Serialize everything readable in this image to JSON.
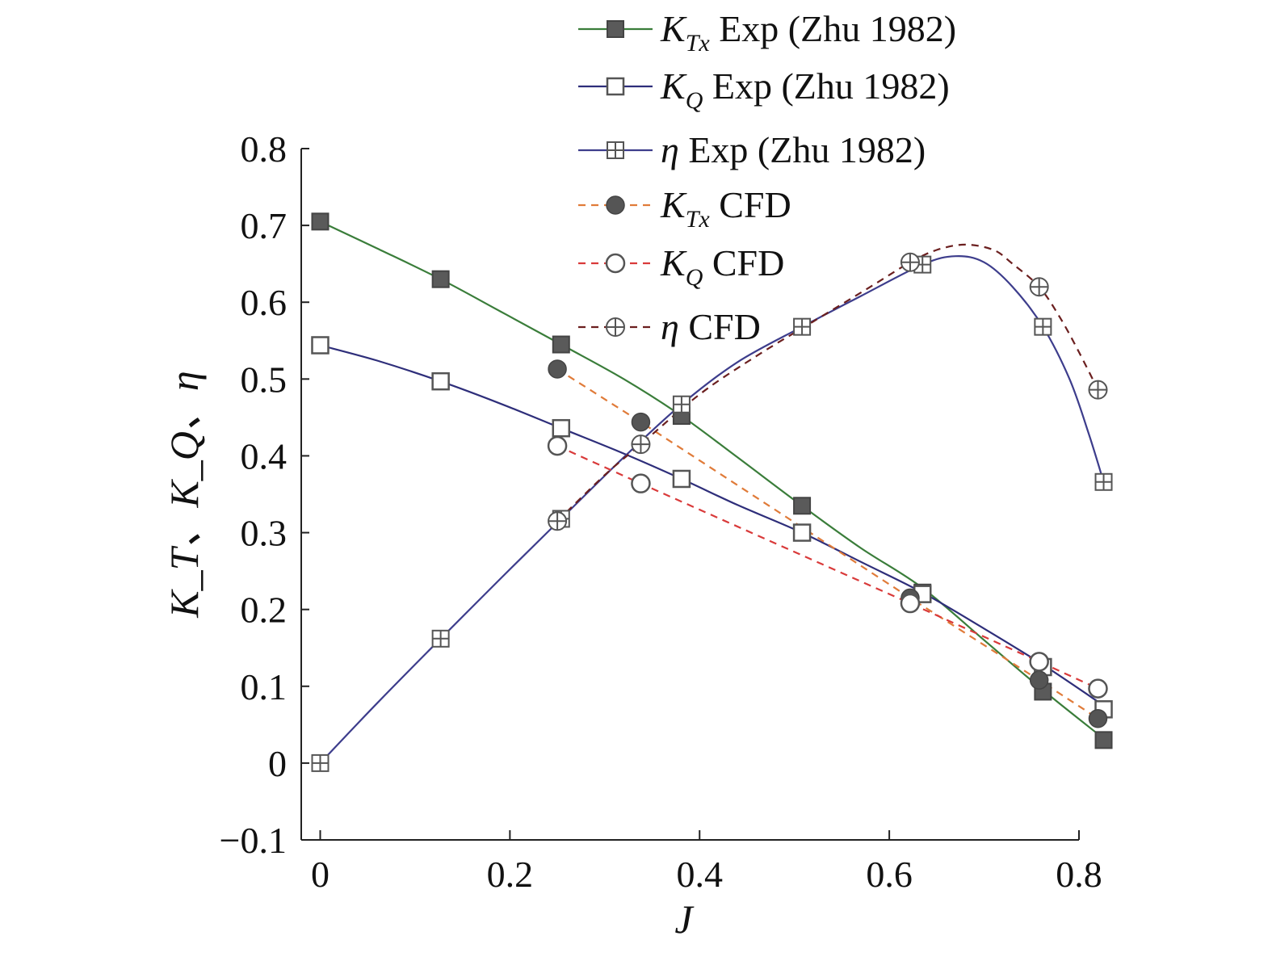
{
  "chart_data": {
    "type": "line",
    "title": "",
    "xlabel": "J",
    "ylabel": "K_T、K_Q、η",
    "xlim": [
      -0.02,
      0.8
    ],
    "ylim": [
      -0.1,
      0.8
    ],
    "xticks": [
      0,
      0.2,
      0.4,
      0.6,
      0.8
    ],
    "xtick_labels": [
      "0",
      "0.2",
      "0.4",
      "0.6",
      "0.8"
    ],
    "yticks": [
      -0.1,
      0,
      0.1,
      0.2,
      0.3,
      0.4,
      0.5,
      0.6,
      0.7,
      0.8
    ],
    "ytick_labels": [
      "−0.1",
      "0",
      "0.1",
      "0.2",
      "0.3",
      "0.4",
      "0.5",
      "0.6",
      "0.7",
      "0.8"
    ],
    "legend_position": "top-right",
    "series": [
      {
        "name": "KTx Exp (Zhu 1982)",
        "symbol": "K",
        "sub": "Tx",
        "suffix": " Exp (Zhu 1982)",
        "marker": "square-filled",
        "line": "solid",
        "color": "#3a7d3a",
        "x": [
          0,
          0.127,
          0.254,
          0.381,
          0.508,
          0.635,
          0.762,
          0.826
        ],
        "y": [
          0.705,
          0.63,
          0.545,
          0.452,
          0.335,
          0.222,
          0.093,
          0.03
        ],
        "curve": {
          "x": [
            0,
            0.06,
            0.127,
            0.19,
            0.254,
            0.32,
            0.381,
            0.44,
            0.508,
            0.57,
            0.635,
            0.7,
            0.762,
            0.826
          ],
          "y": [
            0.705,
            0.67,
            0.63,
            0.588,
            0.545,
            0.5,
            0.452,
            0.398,
            0.335,
            0.28,
            0.228,
            0.16,
            0.095,
            0.032
          ]
        }
      },
      {
        "name": "KQ Exp (Zhu 1982)",
        "symbol": "K",
        "sub": "Q",
        "suffix": " Exp (Zhu 1982)",
        "marker": "square-open",
        "line": "solid",
        "color": "#2e2e7a",
        "x": [
          0,
          0.127,
          0.254,
          0.381,
          0.508,
          0.635,
          0.762,
          0.826
        ],
        "y": [
          0.544,
          0.497,
          0.436,
          0.37,
          0.3,
          0.22,
          0.125,
          0.07
        ],
        "curve": {
          "x": [
            0,
            0.06,
            0.127,
            0.19,
            0.254,
            0.32,
            0.381,
            0.44,
            0.508,
            0.57,
            0.635,
            0.7,
            0.762,
            0.826
          ],
          "y": [
            0.544,
            0.524,
            0.497,
            0.468,
            0.436,
            0.403,
            0.37,
            0.336,
            0.3,
            0.262,
            0.222,
            0.175,
            0.128,
            0.075
          ]
        }
      },
      {
        "name": "η Exp (Zhu 1982)",
        "symbol": "η",
        "sub": "",
        "suffix": " Exp (Zhu 1982)",
        "marker": "square-plus",
        "line": "solid",
        "color": "#3d3d8c",
        "x": [
          0,
          0.127,
          0.254,
          0.381,
          0.508,
          0.635,
          0.762,
          0.826
        ],
        "y": [
          0,
          0.162,
          0.318,
          0.467,
          0.568,
          0.649,
          0.568,
          0.366
        ],
        "curve": {
          "x": [
            0,
            0.06,
            0.127,
            0.19,
            0.254,
            0.32,
            0.381,
            0.44,
            0.508,
            0.57,
            0.635,
            0.67,
            0.7,
            0.73,
            0.762,
            0.79,
            0.81,
            0.826
          ],
          "y": [
            0,
            0.078,
            0.162,
            0.24,
            0.318,
            0.398,
            0.467,
            0.522,
            0.568,
            0.608,
            0.649,
            0.66,
            0.652,
            0.62,
            0.568,
            0.5,
            0.43,
            0.366
          ]
        }
      },
      {
        "name": "KTx CFD",
        "symbol": "K",
        "sub": "Tx",
        "suffix": " CFD",
        "marker": "circle-filled",
        "line": "dashed",
        "color": "#e07b39",
        "x": [
          0.25,
          0.338,
          0.622,
          0.758,
          0.82
        ],
        "y": [
          0.513,
          0.444,
          0.215,
          0.108,
          0.058
        ]
      },
      {
        "name": "KQ CFD",
        "symbol": "K",
        "sub": "Q",
        "suffix": " CFD",
        "marker": "circle-open",
        "line": "dashed",
        "color": "#d93a3a",
        "x": [
          0.25,
          0.338,
          0.622,
          0.758,
          0.82
        ],
        "y": [
          0.413,
          0.364,
          0.208,
          0.132,
          0.097
        ]
      },
      {
        "name": "η CFD",
        "symbol": "η",
        "sub": "",
        "suffix": " CFD",
        "marker": "circle-plus",
        "line": "dashed",
        "color": "#6b1f1f",
        "x": [
          0.25,
          0.338,
          0.622,
          0.758,
          0.82
        ],
        "y": [
          0.315,
          0.415,
          0.652,
          0.62,
          0.486
        ],
        "curve": {
          "x": [
            0.25,
            0.3,
            0.338,
            0.4,
            0.46,
            0.52,
            0.58,
            0.622,
            0.65,
            0.68,
            0.71,
            0.73,
            0.758,
            0.78,
            0.8,
            0.82
          ],
          "y": [
            0.315,
            0.375,
            0.415,
            0.48,
            0.53,
            0.575,
            0.62,
            0.652,
            0.668,
            0.675,
            0.668,
            0.65,
            0.62,
            0.58,
            0.535,
            0.486
          ]
        }
      }
    ]
  }
}
